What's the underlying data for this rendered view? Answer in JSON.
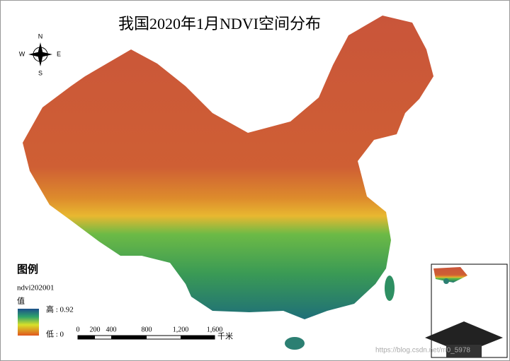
{
  "title": "我国2020年1月NDVI空间分布",
  "compass": {
    "north": "N",
    "south": "S",
    "west": "W",
    "east": "E"
  },
  "legend": {
    "title": "图例",
    "layer": "ndvi202001",
    "field": "值",
    "high": "高 : 0.92",
    "low": "低 : 0"
  },
  "scale_bar": {
    "labels": [
      "0",
      "200",
      "400",
      "800",
      "1,200",
      "1,600"
    ],
    "unit": "千米"
  },
  "watermark": "https://blog.csdn.net/m0_5978"
}
